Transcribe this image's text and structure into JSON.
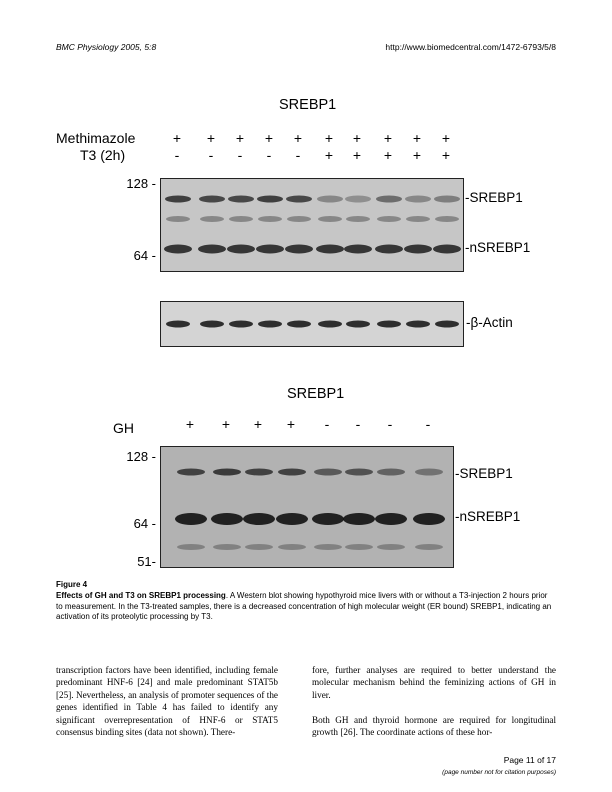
{
  "header": {
    "journal": "BMC Physiology 2005, 5:8",
    "url": "http://www.biomedcentral.com/1472-6793/5/8"
  },
  "blot1": {
    "title": "SREBP1",
    "row1_label": "Methimazole",
    "row2_label": "T3 (2h)",
    "methimazole": [
      "+",
      "+",
      "+",
      "+",
      "+",
      "+",
      "+",
      "+",
      "+",
      "+"
    ],
    "t3": [
      "-",
      "-",
      "-",
      "-",
      "-",
      "+",
      "+",
      "+",
      "+",
      "+"
    ],
    "mw_top": "128 -",
    "mw_bottom": "64 -",
    "band_top": "-SREBP1",
    "band_bottom": "-nSREBP1",
    "actin_label": "-β-Actin"
  },
  "blot2": {
    "title": "SREBP1",
    "row_label": "GH",
    "gh": [
      "+",
      "+",
      "+",
      "+",
      "-",
      "-",
      "-",
      "-"
    ],
    "mw_top": "128 -",
    "mw_mid": "64 -",
    "mw_bottom": "51-",
    "band_top": "-SREBP1",
    "band_bottom": "-nSREBP1"
  },
  "caption": {
    "label": "Figure 4",
    "title": "Effects of GH and T3 on SREBP1 processing",
    "text": ". A Western blot showing hypothyroid mice livers with or without a T3-injection 2 hours prior to measurement. In the T3-treated samples, there is a decreased concentration of high molecular weight (ER bound) SREBP1, indicating an activation of its proteolytic processing by T3."
  },
  "body": {
    "left": "transcription factors have been identified, including female predominant HNF-6 [24] and male predominant STAT5b [25]. Nevertheless, an analysis of promoter sequences of the genes identified in Table 4 has failed to identify any significant overrepresentation of HNF-6 or STAT5 consensus binding sites (data not shown). There-",
    "right_p1": "fore, further analyses are required to better understand the molecular mechanism behind the feminizing actions of GH in liver.",
    "right_p2": "Both GH and thyroid hormone are required for longitudinal growth [26]. The coordinate actions of these hor-"
  },
  "footer": {
    "page": "Page 11 of 17",
    "note": "(page number not for citation purposes)"
  }
}
